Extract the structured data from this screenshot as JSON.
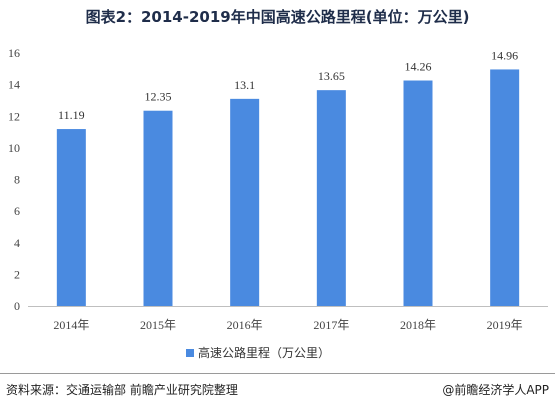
{
  "title": "图表2：2014-2019年中国高速公路里程(单位：万公里)",
  "source": "资料来源：交通运输部 前瞻产业研究院整理",
  "brand": "@前瞻经济学人APP",
  "chart_data": {
    "type": "bar",
    "categories": [
      "2014年",
      "2015年",
      "2016年",
      "2017年",
      "2018年",
      "2019年"
    ],
    "series": [
      {
        "name": "高速公路里程（万公里）",
        "values": [
          11.19,
          12.35,
          13.1,
          13.65,
          14.26,
          14.96
        ],
        "labels": [
          "11.19",
          "12.35",
          "13.1",
          "13.65",
          "14.26",
          "14.96"
        ],
        "color": "#4a8ae0"
      }
    ],
    "ylim": [
      0,
      16
    ],
    "yticks": [
      0,
      2,
      4,
      6,
      8,
      10,
      12,
      14,
      16
    ],
    "grid": false,
    "legend": "bottom-center"
  }
}
